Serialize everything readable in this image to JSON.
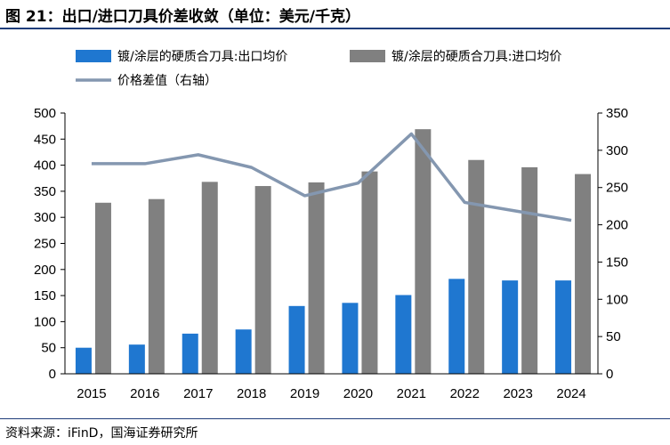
{
  "title": "图 21：出口/进口刀具价差收敛（单位：美元/千克）",
  "source": "资料来源：iFinD，国海证券研究所",
  "chart_data": {
    "type": "bar",
    "categories": [
      "2015",
      "2016",
      "2017",
      "2018",
      "2019",
      "2020",
      "2021",
      "2022",
      "2023",
      "2024"
    ],
    "series": [
      {
        "name": "镀/涂层的硬质合刀具:出口均价",
        "type": "bar",
        "axis": "left",
        "color": "#1f77d0",
        "values": [
          50,
          56,
          77,
          85,
          130,
          136,
          151,
          182,
          179,
          179
        ]
      },
      {
        "name": "镀/涂层的硬质合刀具:进口均价",
        "type": "bar",
        "axis": "left",
        "color": "#808080",
        "values": [
          328,
          335,
          368,
          360,
          367,
          388,
          469,
          410,
          396,
          383
        ]
      },
      {
        "name": "价格差值（右轴）",
        "type": "line",
        "axis": "right",
        "color": "#8497b0",
        "values": [
          282,
          282,
          294,
          277,
          239,
          256,
          322,
          230,
          218,
          206
        ]
      }
    ],
    "y_left": {
      "min": 0,
      "max": 500,
      "step": 50
    },
    "y_right": {
      "min": 0,
      "max": 350,
      "step": 50
    },
    "grid": false,
    "legend_position": "top"
  }
}
